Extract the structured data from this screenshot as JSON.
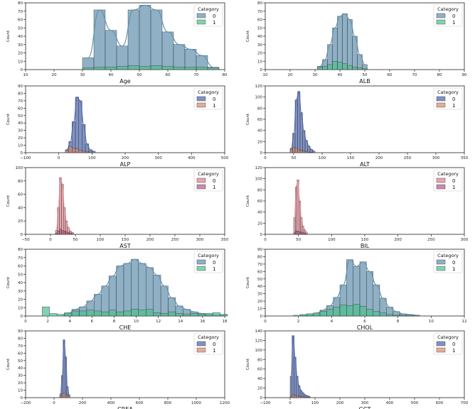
{
  "chart_data": [
    {
      "type": "bar",
      "title": "",
      "xlabel": "Age",
      "ylabel": "Count",
      "xlim": [
        10,
        80
      ],
      "ylim": [
        0,
        85
      ],
      "xticks": [
        "10",
        "20",
        "30",
        "40",
        "50",
        "60",
        "70",
        "80"
      ],
      "yticks": [
        "0",
        "10",
        "20",
        "30",
        "40",
        "50",
        "60",
        "70",
        "80"
      ],
      "legend": {
        "title": "Category",
        "position": "top-right",
        "entries": [
          "0",
          "1"
        ]
      },
      "colors": [
        "#5f8fad",
        "#4fbf8e"
      ],
      "bin_start": 30,
      "bin_width": 4,
      "series": [
        {
          "name": "0",
          "values": [
            15,
            76,
            50,
            30,
            76,
            82,
            76,
            48,
            32,
            26,
            18,
            3
          ],
          "kde": true
        },
        {
          "name": "1",
          "values": [
            2,
            3,
            3,
            4,
            5,
            4,
            5,
            4,
            3,
            3,
            3,
            2
          ],
          "kde": false
        }
      ]
    },
    {
      "type": "bar",
      "title": "",
      "xlabel": "ALB",
      "ylabel": "Count",
      "xlim": [
        10,
        90
      ],
      "ylim": [
        0,
        80
      ],
      "xticks": [
        "10",
        "20",
        "30",
        "40",
        "50",
        "60",
        "70",
        "80",
        "90"
      ],
      "yticks": [
        "0",
        "10",
        "20",
        "30",
        "40",
        "50",
        "60",
        "70",
        "80"
      ],
      "legend": {
        "title": "Category",
        "position": "top-right",
        "entries": [
          "0",
          "1"
        ]
      },
      "colors": [
        "#5f8fad",
        "#4fbf8e"
      ],
      "bin_start": 31,
      "bin_width": 2,
      "series": [
        {
          "name": "0",
          "values": [
            4,
            12,
            30,
            50,
            64,
            67,
            60,
            40,
            18,
            6
          ],
          "kde": true
        },
        {
          "name": "1",
          "values": [
            3,
            4,
            6,
            10,
            9,
            7,
            5,
            3,
            2,
            1
          ],
          "kde": false
        }
      ]
    },
    {
      "type": "bar",
      "title": "",
      "xlabel": "ALP",
      "ylabel": "Count",
      "xlim": [
        -100,
        500
      ],
      "ylim": [
        0,
        90
      ],
      "xticks": [
        "−100",
        "0",
        "100",
        "200",
        "300",
        "400",
        "500"
      ],
      "yticks": [
        "0",
        "10",
        "20",
        "30",
        "40",
        "50",
        "60",
        "70",
        "80",
        "90"
      ],
      "legend": {
        "title": "Category",
        "position": "top-right",
        "entries": [
          "0",
          "1"
        ]
      },
      "colors": [
        "#4a62a8",
        "#d9896e"
      ],
      "bin_start": 20,
      "bin_width": 10,
      "series": [
        {
          "name": "0",
          "values": [
            4,
            15,
            42,
            75,
            70,
            38,
            12,
            4,
            2
          ],
          "kde": true
        },
        {
          "name": "1",
          "values": [
            3,
            8,
            6,
            5,
            3,
            2,
            1,
            1,
            0
          ],
          "kde": false
        }
      ]
    },
    {
      "type": "bar",
      "title": "",
      "xlabel": "ALT",
      "ylabel": "Count",
      "xlim": [
        -50,
        350
      ],
      "ylim": [
        0,
        120
      ],
      "xticks": [
        "0",
        "50",
        "100",
        "150",
        "200",
        "250",
        "300",
        "350"
      ],
      "yticks": [
        "0",
        "20",
        "40",
        "60",
        "80",
        "100",
        "120"
      ],
      "legend": {
        "title": "Category",
        "position": "top-right",
        "entries": [
          "0",
          "1"
        ]
      },
      "colors": [
        "#4a62a8",
        "#d9896e"
      ],
      "bin_start": 0,
      "bin_width": 5,
      "series": [
        {
          "name": "0",
          "values": [
            8,
            35,
            95,
            110,
            72,
            40,
            22,
            12,
            6,
            3
          ],
          "kde": true
        },
        {
          "name": "1",
          "values": [
            6,
            9,
            8,
            6,
            4,
            3,
            2,
            1,
            1,
            0
          ],
          "kde": false
        }
      ]
    },
    {
      "type": "bar",
      "title": "",
      "xlabel": "AST",
      "ylabel": "Count",
      "xlim": [
        -50,
        350
      ],
      "ylim": [
        0,
        100
      ],
      "xticks": [
        "−50",
        "0",
        "50",
        "100",
        "150",
        "200",
        "250",
        "300",
        "350"
      ],
      "yticks": [
        "0",
        "20",
        "40",
        "60",
        "80",
        "100"
      ],
      "legend": {
        "title": "Category",
        "position": "top-right",
        "entries": [
          "0",
          "1"
        ]
      },
      "colors": [
        "#d9818b",
        "#b35a86"
      ],
      "bin_start": 10,
      "bin_width": 4,
      "series": [
        {
          "name": "0",
          "values": [
            6,
            40,
            85,
            75,
            40,
            20,
            10,
            5,
            3
          ],
          "kde": true
        },
        {
          "name": "1",
          "values": [
            2,
            5,
            8,
            6,
            5,
            4,
            3,
            2,
            1
          ],
          "kde": false
        }
      ]
    },
    {
      "type": "bar",
      "title": "",
      "xlabel": "BIL",
      "ylabel": "Count",
      "xlim": [
        -50,
        300
      ],
      "ylim": [
        0,
        120
      ],
      "xticks": [
        "0",
        "50",
        "100",
        "150",
        "200",
        "250",
        "300"
      ],
      "yticks": [
        "0",
        "20",
        "40",
        "60",
        "80",
        "100",
        "120"
      ],
      "legend": {
        "title": "Category",
        "position": "top-right",
        "entries": [
          "0",
          "1"
        ]
      },
      "colors": [
        "#d9818b",
        "#b35a86"
      ],
      "bin_start": 0,
      "bin_width": 3,
      "series": [
        {
          "name": "0",
          "values": [
            30,
            85,
            98,
            60,
            30,
            15,
            8,
            4
          ],
          "kde": true
        },
        {
          "name": "1",
          "values": [
            3,
            6,
            6,
            5,
            4,
            3,
            2,
            1
          ],
          "kde": false
        }
      ]
    },
    {
      "type": "bar",
      "title": "",
      "xlabel": "CHE",
      "ylabel": "Count",
      "xlim": [
        0,
        18
      ],
      "ylim": [
        0,
        80
      ],
      "xticks": [
        "0",
        "2",
        "4",
        "6",
        "8",
        "10",
        "12",
        "14",
        "16",
        "18"
      ],
      "yticks": [
        "0",
        "10",
        "20",
        "30",
        "40",
        "50",
        "60",
        "70",
        "80"
      ],
      "legend": {
        "title": "Category",
        "position": "top-right",
        "entries": [
          "0",
          "1"
        ]
      },
      "colors": [
        "#5f8fad",
        "#4fbf8e"
      ],
      "bin_start": 1.5,
      "bin_width": 0.67,
      "series": [
        {
          "name": "0",
          "values": [
            0,
            0,
            0,
            3,
            8,
            11,
            18,
            26,
            36,
            48,
            60,
            63,
            68,
            63,
            58,
            49,
            36,
            22,
            12,
            8,
            5,
            3,
            2,
            1,
            1
          ],
          "kde": true
        },
        {
          "name": "1",
          "values": [
            11,
            3,
            2,
            4,
            6,
            6,
            7,
            6,
            5,
            7,
            5,
            6,
            8,
            7,
            8,
            4,
            3,
            5,
            3,
            2,
            3,
            2,
            3,
            4,
            2
          ],
          "kde": false
        }
      ]
    },
    {
      "type": "bar",
      "title": "",
      "xlabel": "CHOL",
      "ylabel": "Count",
      "xlim": [
        0,
        12
      ],
      "ylim": [
        0,
        90
      ],
      "xticks": [
        "0",
        "2",
        "4",
        "6",
        "8",
        "10",
        "12"
      ],
      "yticks": [
        "0",
        "10",
        "20",
        "30",
        "40",
        "50",
        "60",
        "70",
        "80",
        "90"
      ],
      "legend": {
        "title": "Category",
        "position": "top-right",
        "entries": [
          "0",
          "1"
        ]
      },
      "colors": [
        "#5f8fad",
        "#4fbf8e"
      ],
      "bin_start": 1.7,
      "bin_width": 0.4,
      "series": [
        {
          "name": "0",
          "values": [
            0,
            1,
            2,
            4,
            8,
            14,
            25,
            42,
            76,
            67,
            73,
            60,
            42,
            24,
            12,
            6,
            3,
            2,
            1
          ],
          "kde": true
        },
        {
          "name": "1",
          "values": [
            1,
            2,
            3,
            4,
            6,
            9,
            12,
            15,
            14,
            16,
            13,
            9,
            6,
            4,
            2,
            1,
            1,
            1,
            1
          ],
          "kde": false
        }
      ]
    },
    {
      "type": "bar",
      "title": "",
      "xlabel": "CREA",
      "ylabel": "Count",
      "xlim": [
        -200,
        1200
      ],
      "ylim": [
        0,
        90
      ],
      "xticks": [
        "−200",
        "0",
        "200",
        "400",
        "600",
        "800",
        "1000",
        "1200"
      ],
      "yticks": [
        "0",
        "10",
        "20",
        "30",
        "40",
        "50",
        "60",
        "70",
        "80",
        "90"
      ],
      "legend": {
        "title": "Category",
        "position": "top-right",
        "entries": [
          "0",
          "1"
        ]
      },
      "colors": [
        "#4a62a8",
        "#d9896e"
      ],
      "bin_start": 40,
      "bin_width": 12,
      "series": [
        {
          "name": "0",
          "values": [
            5,
            30,
            78,
            55,
            15,
            4
          ],
          "kde": true
        },
        {
          "name": "1",
          "values": [
            2,
            5,
            6,
            4,
            3,
            2
          ],
          "kde": false
        }
      ]
    },
    {
      "type": "bar",
      "title": "",
      "xlabel": "GGT",
      "ylabel": "Count",
      "xlim": [
        -100,
        700
      ],
      "ylim": [
        0,
        140
      ],
      "xticks": [
        "−100",
        "0",
        "100",
        "200",
        "300",
        "400",
        "500",
        "600",
        "700"
      ],
      "yticks": [
        "0",
        "20",
        "40",
        "60",
        "80",
        "100",
        "120",
        "140"
      ],
      "legend": {
        "title": "Category",
        "position": "top-right",
        "entries": [
          "0",
          "1"
        ]
      },
      "colors": [
        "#4a62a8",
        "#d9896e"
      ],
      "bin_start": 0,
      "bin_width": 8,
      "series": [
        {
          "name": "0",
          "values": [
            45,
            130,
            85,
            45,
            25,
            15,
            10,
            6,
            4,
            3
          ],
          "kde": true
        },
        {
          "name": "1",
          "values": [
            3,
            6,
            5,
            4,
            3,
            2,
            2,
            1,
            1,
            1
          ],
          "kde": false
        }
      ]
    }
  ]
}
